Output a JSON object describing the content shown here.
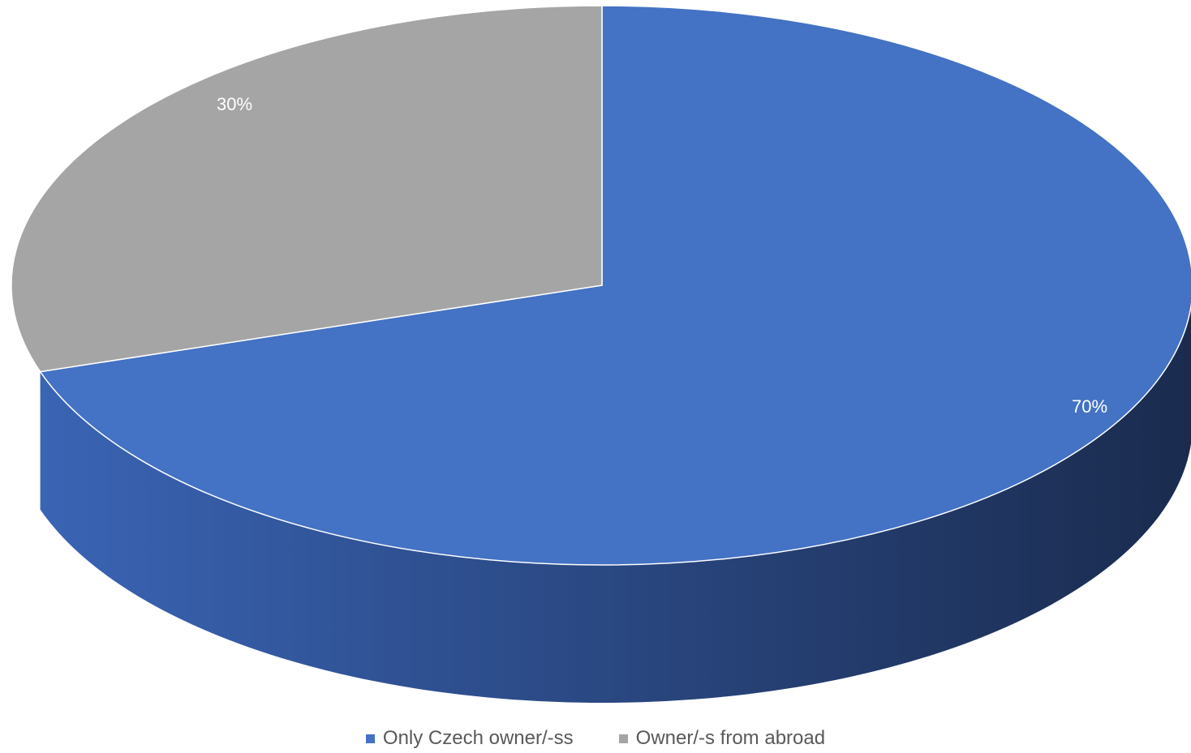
{
  "chart_data": {
    "type": "pie",
    "style": "3d",
    "title": "",
    "categories": [
      "Only Czech owner/-ss",
      "Owner/-s from abroad"
    ],
    "values": [
      70,
      30
    ],
    "data_labels": [
      "70%",
      "30%"
    ],
    "colors": [
      "#4472c4",
      "#a5a5a5"
    ],
    "legend_position": "bottom"
  }
}
